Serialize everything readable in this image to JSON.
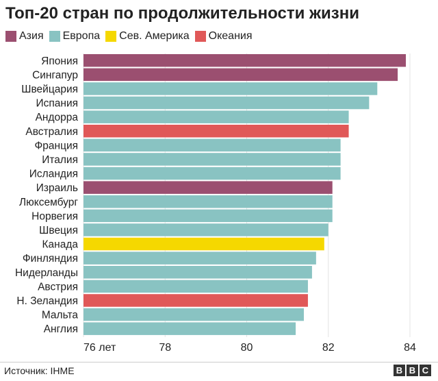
{
  "chart_data": {
    "type": "bar",
    "title": "Топ-20 стран по продолжительности жизни",
    "legend": [
      {
        "name": "Азия",
        "color": "#9b4f70"
      },
      {
        "name": "Европа",
        "color": "#89c3c2"
      },
      {
        "name": "Сев. Америка",
        "color": "#f5d800"
      },
      {
        "name": "Океания",
        "color": "#e05858"
      }
    ],
    "categories": [
      "Япония",
      "Сингапур",
      "Швейцария",
      "Испания",
      "Андорра",
      "Австралия",
      "Франция",
      "Италия",
      "Исландия",
      "Израиль",
      "Люксембург",
      "Норвегия",
      "Швеция",
      "Канада",
      "Финляндия",
      "Нидерланды",
      "Австрия",
      "Н. Зеландия",
      "Мальта",
      "Англия"
    ],
    "values": [
      83.9,
      83.7,
      83.2,
      83.0,
      82.5,
      82.5,
      82.3,
      82.3,
      82.3,
      82.1,
      82.1,
      82.1,
      82.0,
      81.9,
      81.7,
      81.6,
      81.5,
      81.5,
      81.4,
      81.2
    ],
    "regions": [
      0,
      0,
      1,
      1,
      1,
      3,
      1,
      1,
      1,
      0,
      1,
      1,
      1,
      2,
      1,
      1,
      1,
      3,
      1,
      1
    ],
    "xlim": [
      76,
      84
    ],
    "xticks": [
      76,
      78,
      80,
      82,
      84
    ],
    "xtick_labels": [
      "76 лет",
      "78",
      "80",
      "82",
      "84"
    ],
    "grid": true
  },
  "footer": {
    "source": "Источник: IHME",
    "logo": "BBC"
  }
}
